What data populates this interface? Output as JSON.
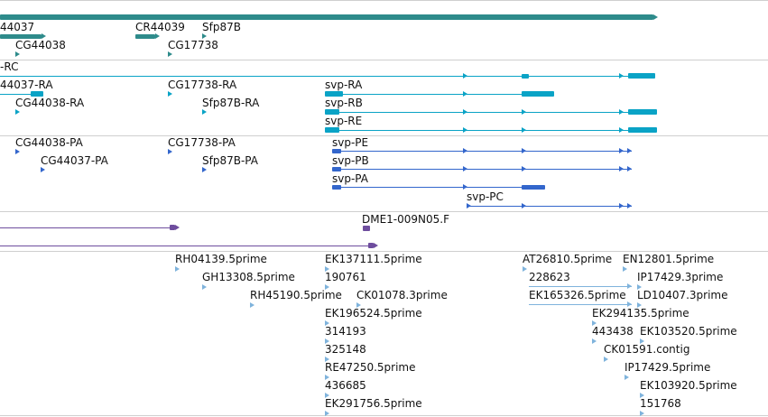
{
  "colors": {
    "gene": "#2e8b8b",
    "mrna": "#0aa3c6",
    "protein": "#3366cc",
    "match": "#6e4d9e",
    "est": "#7fb3dc",
    "separator": "#cfcfcf"
  },
  "tracks": {
    "genes": {
      "items": [
        {
          "id": "g-44037",
          "label": "44037",
          "color": "gene"
        },
        {
          "id": "g-cg44038",
          "label": "CG44038",
          "color": "gene"
        },
        {
          "id": "g-cr44039",
          "label": "CR44039",
          "color": "gene"
        },
        {
          "id": "g-sfp87b",
          "label": "Sfp87B",
          "color": "gene"
        },
        {
          "id": "g-cg17738",
          "label": "CG17738",
          "color": "gene"
        }
      ]
    },
    "transcripts": {
      "items": [
        {
          "id": "t-rc",
          "label": "-RC"
        },
        {
          "id": "t-44037ra",
          "label": "44037-RA"
        },
        {
          "id": "t-cg44038ra",
          "label": "CG44038-RA"
        },
        {
          "id": "t-cg17738ra",
          "label": "CG17738-RA"
        },
        {
          "id": "t-sfp87bra",
          "label": "Sfp87B-RA"
        },
        {
          "id": "t-svpra",
          "label": "svp-RA"
        },
        {
          "id": "t-svprb",
          "label": "svp-RB"
        },
        {
          "id": "t-svpre",
          "label": "svp-RE"
        }
      ]
    },
    "proteins": {
      "items": [
        {
          "id": "p-cg44038pa",
          "label": "CG44038-PA"
        },
        {
          "id": "p-cg44037pa",
          "label": "CG44037-PA"
        },
        {
          "id": "p-cg17738pa",
          "label": "CG17738-PA"
        },
        {
          "id": "p-sfp87bpa",
          "label": "Sfp87B-PA"
        },
        {
          "id": "p-svppe",
          "label": "svp-PE"
        },
        {
          "id": "p-svppb",
          "label": "svp-PB"
        },
        {
          "id": "p-svppa",
          "label": "svp-PA"
        },
        {
          "id": "p-svppc",
          "label": "svp-PC"
        }
      ]
    },
    "matches": {
      "items": [
        {
          "id": "m-dme1",
          "label": "DME1-009N05.F"
        }
      ]
    },
    "ests": {
      "items": [
        {
          "id": "e1",
          "label": "RH04139.5prime"
        },
        {
          "id": "e2",
          "label": "GH13308.5prime"
        },
        {
          "id": "e3",
          "label": "RH45190.5prime"
        },
        {
          "id": "e4",
          "label": "EK137111.5prime"
        },
        {
          "id": "e5",
          "label": "190761"
        },
        {
          "id": "e6",
          "label": "CK01078.3prime"
        },
        {
          "id": "e7",
          "label": "EK196524.5prime"
        },
        {
          "id": "e8",
          "label": "314193"
        },
        {
          "id": "e9",
          "label": "325148"
        },
        {
          "id": "e10",
          "label": "RE47250.5prime"
        },
        {
          "id": "e11",
          "label": "436685"
        },
        {
          "id": "e12",
          "label": "EK291756.5prime"
        },
        {
          "id": "e13",
          "label": "AT26810.5prime"
        },
        {
          "id": "e14",
          "label": "228623"
        },
        {
          "id": "e15",
          "label": "EK165326.5prime"
        },
        {
          "id": "e16",
          "label": "EN12801.5prime"
        },
        {
          "id": "e17",
          "label": "IP17429.3prime"
        },
        {
          "id": "e18",
          "label": "LD10407.3prime"
        },
        {
          "id": "e19",
          "label": "EK294135.5prime"
        },
        {
          "id": "e20",
          "label": "443438"
        },
        {
          "id": "e21",
          "label": "EK103520.5prime"
        },
        {
          "id": "e22",
          "label": "CK01591.contig"
        },
        {
          "id": "e23",
          "label": "IP17429.5prime"
        },
        {
          "id": "e24",
          "label": "EK103920.5prime"
        },
        {
          "id": "e25",
          "label": "151768"
        }
      ]
    }
  }
}
